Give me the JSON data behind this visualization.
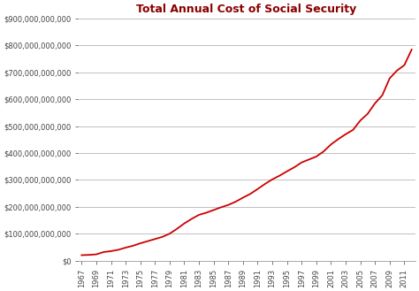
{
  "title": "Total Annual Cost of Social Security",
  "title_color": "#8B0000",
  "title_fontsize": 9,
  "title_fontweight": "bold",
  "background_color": "#FFFFFF",
  "plot_bg_color": "#FFFFFF",
  "grid_color": "#C0C0C0",
  "line_color": "#CC0000",
  "line_width": 1.3,
  "years": [
    1967,
    1968,
    1969,
    1970,
    1971,
    1972,
    1973,
    1974,
    1975,
    1976,
    1977,
    1978,
    1979,
    1980,
    1981,
    1982,
    1983,
    1984,
    1985,
    1986,
    1987,
    1988,
    1989,
    1990,
    1991,
    1992,
    1993,
    1994,
    1995,
    1996,
    1997,
    1998,
    1999,
    2000,
    2001,
    2002,
    2003,
    2004,
    2005,
    2006,
    2007,
    2008,
    2009,
    2010,
    2011,
    2012
  ],
  "values": [
    20000000000.0,
    21000000000.0,
    23000000000.0,
    31500000000.0,
    35000000000.0,
    40000000000.0,
    48000000000.0,
    55000000000.0,
    64000000000.0,
    72000000000.0,
    80000000000.0,
    88000000000.0,
    100000000000.0,
    118000000000.0,
    138000000000.0,
    155000000000.0,
    170000000000.0,
    178000000000.0,
    188000000000.0,
    198000000000.0,
    207000000000.0,
    219000000000.0,
    234000000000.0,
    248000000000.0,
    266000000000.0,
    285000000000.0,
    302000000000.0,
    316000000000.0,
    332000000000.0,
    347000000000.0,
    365000000000.0,
    376000000000.0,
    387000000000.0,
    406000000000.0,
    432000000000.0,
    452000000000.0,
    470000000000.0,
    486000000000.0,
    521000000000.0,
    546000000000.0,
    585000000000.0,
    615000000000.0,
    678000000000.0,
    707000000000.0,
    727000000000.0,
    785000000000.0
  ],
  "ylim": [
    0,
    900000000000.0
  ],
  "yticks": [
    0,
    100000000000.0,
    200000000000.0,
    300000000000.0,
    400000000000.0,
    500000000000.0,
    600000000000.0,
    700000000000.0,
    800000000000.0,
    900000000000.0
  ],
  "ytick_labels": [
    "$0",
    "$100,000,000,000",
    "$200,000,000,000",
    "$300,000,000,000",
    "$400,000,000,000",
    "$500,000,000,000",
    "$600,000,000,000",
    "$700,000,000,000",
    "$800,000,000,000",
    "$900,000,000,000"
  ],
  "xtick_years": [
    1967,
    1969,
    1971,
    1973,
    1975,
    1977,
    1979,
    1981,
    1983,
    1985,
    1987,
    1989,
    1991,
    1993,
    1995,
    1997,
    1999,
    2001,
    2003,
    2005,
    2007,
    2009,
    2011
  ],
  "ylabel_fontsize": 6.0,
  "xlabel_fontsize": 6.0,
  "figsize": [
    4.74,
    3.29
  ],
  "dpi": 100
}
